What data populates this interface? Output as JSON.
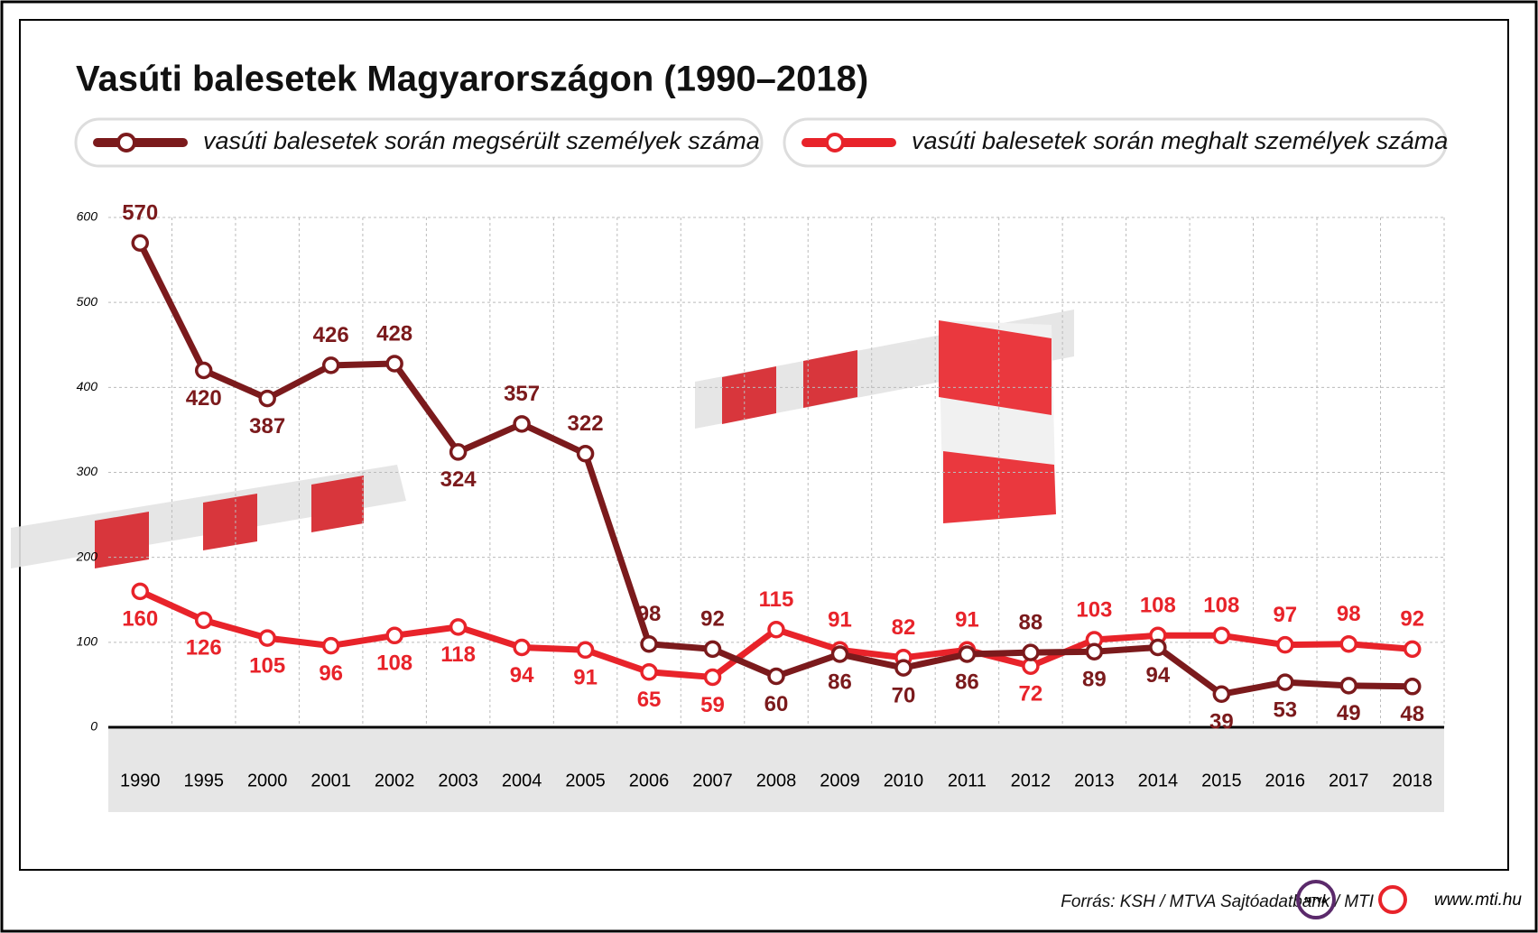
{
  "chart_data": {
    "type": "line",
    "title": "Vasúti balesetek Magyarországon (1990–2018)",
    "categories": [
      "1990",
      "1995",
      "2000",
      "2001",
      "2002",
      "2003",
      "2004",
      "2005",
      "2006",
      "2007",
      "2008",
      "2009",
      "2010",
      "2011",
      "2012",
      "2013",
      "2014",
      "2015",
      "2016",
      "2017",
      "2018"
    ],
    "series": [
      {
        "name": "vasúti balesetek során megsérült személyek száma",
        "color": "#7b1a1c",
        "values": [
          570,
          420,
          387,
          426,
          428,
          324,
          357,
          322,
          98,
          92,
          60,
          86,
          70,
          86,
          88,
          89,
          94,
          39,
          53,
          49,
          48
        ]
      },
      {
        "name": "vasúti balesetek során meghalt személyek száma",
        "color": "#e8232a",
        "values": [
          160,
          126,
          105,
          96,
          108,
          118,
          94,
          91,
          65,
          59,
          115,
          91,
          82,
          91,
          72,
          103,
          108,
          108,
          97,
          98,
          92
        ]
      }
    ],
    "ylim": [
      0,
      600
    ],
    "yticks": [
      0,
      100,
      200,
      300,
      400,
      500,
      600
    ],
    "grid": true
  },
  "footer": {
    "source": "Forrás: KSH / MTVA Sajtóadatbank / MTI",
    "logo": "MTVA",
    "url": "www.mti.hu"
  }
}
